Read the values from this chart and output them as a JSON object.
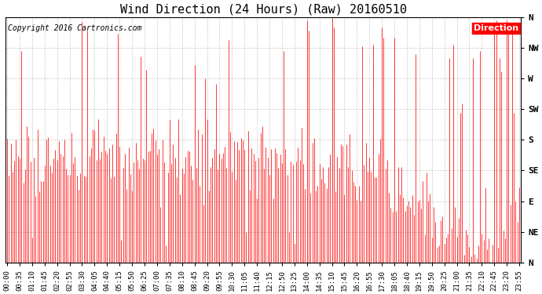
{
  "title": "Wind Direction (24 Hours) (Raw) 20160510",
  "copyright": "Copyright 2016 Cartronics.com",
  "legend_label": "Direction",
  "legend_bg": "#FF0000",
  "legend_fg": "#FFFFFF",
  "line_color": "#FF0000",
  "background_color": "#FFFFFF",
  "grid_color": "#BBBBBB",
  "ytick_labels": [
    "N",
    "NE",
    "E",
    "SE",
    "S",
    "SW",
    "W",
    "NW",
    "N"
  ],
  "ytick_values": [
    0,
    45,
    90,
    135,
    180,
    225,
    270,
    315,
    360
  ],
  "ylim": [
    0,
    360
  ],
  "title_fontsize": 11,
  "copyright_fontsize": 7,
  "tick_fontsize": 6.5,
  "ytick_fontsize": 8
}
